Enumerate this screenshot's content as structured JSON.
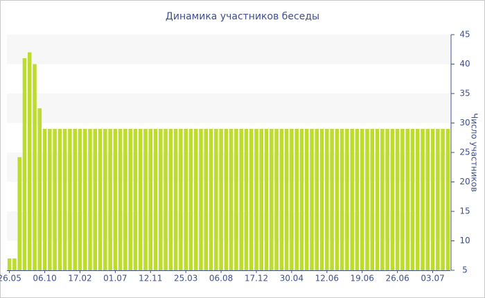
{
  "chart_data": {
    "type": "bar",
    "title": "Динамика участников беседы",
    "y_label": "Число участников",
    "categories": [
      "26.05",
      null,
      null,
      null,
      null,
      null,
      null,
      "06.10",
      null,
      null,
      null,
      null,
      null,
      null,
      "17.02",
      null,
      null,
      null,
      null,
      null,
      null,
      "01.07",
      null,
      null,
      null,
      null,
      null,
      null,
      "12.11",
      null,
      null,
      null,
      null,
      null,
      null,
      "25.03",
      null,
      null,
      null,
      null,
      null,
      null,
      "06.08",
      null,
      null,
      null,
      null,
      null,
      null,
      "17.12",
      null,
      null,
      null,
      null,
      null,
      null,
      "30.04",
      null,
      null,
      null,
      null,
      null,
      null,
      "12.06",
      null,
      null,
      null,
      null,
      null,
      null,
      "19.06",
      null,
      null,
      null,
      null,
      null,
      null,
      "26.06",
      null,
      null,
      null,
      null,
      null,
      null,
      "03.07",
      null,
      null,
      null
    ],
    "values": [
      7,
      7,
      24.2,
      41,
      42,
      40,
      32.5,
      29,
      29,
      29,
      29,
      29,
      29,
      29,
      29,
      29,
      29,
      29,
      29,
      29,
      29,
      29,
      29,
      29,
      29,
      29,
      29,
      29,
      29,
      29,
      29,
      29,
      29,
      29,
      29,
      29,
      29,
      29,
      29,
      29,
      29,
      29,
      29,
      29,
      29,
      29,
      29,
      29,
      29,
      29,
      29,
      29,
      29,
      29,
      29,
      29,
      29,
      29,
      29,
      29,
      29,
      29,
      29,
      29,
      29,
      29,
      29,
      29,
      29,
      29,
      29,
      29,
      29,
      29,
      29,
      29,
      29,
      29,
      29,
      29,
      29,
      29,
      29,
      29,
      29,
      29,
      29,
      29
    ],
    "color": "#bddc2e",
    "ylim": [
      5,
      45
    ],
    "yticks": [
      5,
      10,
      15,
      20,
      25,
      30,
      35,
      40,
      45
    ],
    "grid": "bands",
    "y_axis_side": "right"
  }
}
